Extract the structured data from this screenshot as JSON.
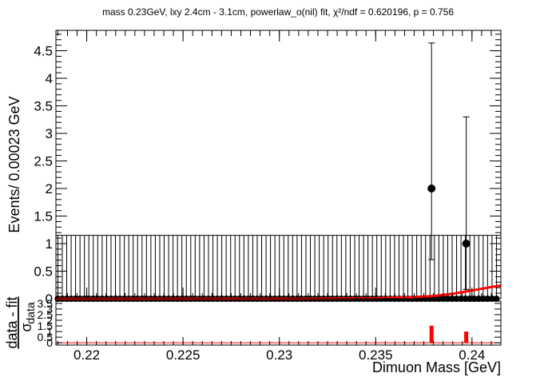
{
  "chart_data": [
    {
      "type": "scatter",
      "title": "mass 0.23GeV, lxy 2.4cm - 3.1cm, powerlaw_o(nil) fit, χ²/ndf = 0.620196, p = 0.756",
      "xlabel": "Dimuon Mass [GeV]",
      "ylabel": "Events/ 0.00023 GeV",
      "xlim": [
        0.2184,
        0.2415
      ],
      "ylim": [
        0,
        4.87
      ],
      "x_ticks": [
        0.22,
        0.225,
        0.23,
        0.235,
        0.24
      ],
      "x_tick_labels": [
        "0.22",
        "0.225",
        "0.23",
        "0.235",
        "0.24"
      ],
      "y_ticks": [
        0,
        0.5,
        1,
        1.5,
        2,
        2.5,
        3,
        3.5,
        4,
        4.5
      ],
      "y_tick_labels": [
        "0",
        "0.5",
        "1",
        "1.5",
        "2",
        "2.5",
        "3",
        "3.5",
        "4",
        "4.5"
      ],
      "series": [
        {
          "kind": "data",
          "points": [
            {
              "x": 0.2379,
              "y": 2,
              "err_low": 1.29,
              "err_high": 2.64
            },
            {
              "x": 0.2397,
              "y": 1,
              "err_low": 0.83,
              "err_high": 2.3
            }
          ],
          "zero_bins": {
            "x_start": 0.2185,
            "x_end": 0.2414,
            "step": 0.00023,
            "err_high": 1.15
          }
        },
        {
          "kind": "fit",
          "color": "#ff0000",
          "points": [
            [
              0.2184,
              0.0
            ],
            [
              0.228,
              0.001
            ],
            [
              0.232,
              0.003
            ],
            [
              0.235,
              0.01
            ],
            [
              0.237,
              0.03
            ],
            [
              0.238,
              0.05
            ],
            [
              0.239,
              0.09
            ],
            [
              0.24,
              0.15
            ],
            [
              0.2408,
              0.2
            ],
            [
              0.2415,
              0.24
            ]
          ]
        }
      ]
    },
    {
      "type": "bar",
      "ylabel_numerator": "data - fit",
      "ylabel_denominator": "σ",
      "ylabel_subscript": "data",
      "ylim": [
        -0.2,
        3.7
      ],
      "y_ticks": [
        0,
        0.5,
        1,
        1.5,
        2,
        2.5,
        3,
        3.5
      ],
      "y_tick_labels": [
        "0",
        "0.5",
        "1",
        "1.5",
        "2",
        "2.5",
        "3",
        "3.5"
      ],
      "bars": [
        {
          "x": 0.2379,
          "value": 1.52
        },
        {
          "x": 0.2397,
          "value": 1.0
        }
      ],
      "color": "#ff0000"
    }
  ]
}
